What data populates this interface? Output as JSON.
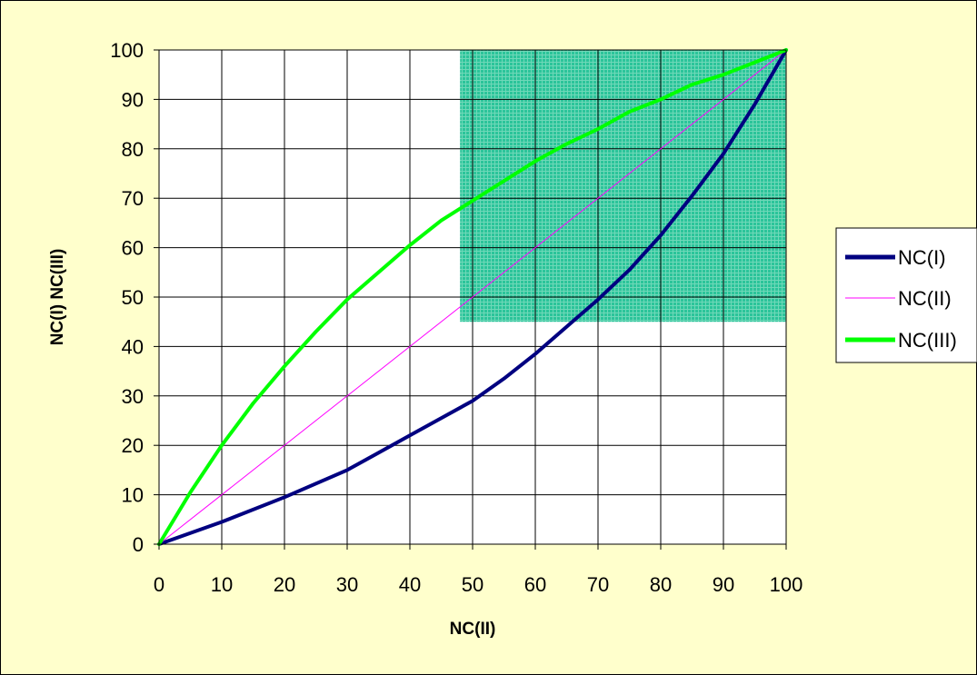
{
  "chart_data": {
    "type": "line",
    "title": "",
    "xlabel": "NC(II)",
    "ylabel": "NC(I)  NC(III)",
    "xlim": [
      0,
      100
    ],
    "ylim": [
      0,
      100
    ],
    "xticks": [
      "0",
      "10",
      "20",
      "30",
      "40",
      "50",
      "60",
      "70",
      "80",
      "90",
      "100"
    ],
    "yticks": [
      "0",
      "10",
      "20",
      "30",
      "40",
      "50",
      "60",
      "70",
      "80",
      "90",
      "100"
    ],
    "grid": true,
    "legend_position": "right",
    "highlight_region": {
      "x": [
        48,
        100
      ],
      "y": [
        45,
        100
      ],
      "color": "#2bc49a"
    },
    "series": [
      {
        "name": "NC(I)",
        "color": "#000080",
        "x": [
          0,
          10,
          20,
          30,
          35,
          40,
          45,
          50,
          55,
          60,
          65,
          70,
          75,
          80,
          85,
          90,
          95,
          100
        ],
        "y": [
          0,
          4.5,
          9.5,
          15,
          18.5,
          22,
          25.5,
          29,
          33.5,
          38.5,
          44,
          49.5,
          55.5,
          62.5,
          70.5,
          79,
          89,
          100
        ]
      },
      {
        "name": "NC(II)",
        "color": "#ff00ff",
        "x": [
          0,
          100
        ],
        "y": [
          0,
          100
        ]
      },
      {
        "name": "NC(III)",
        "color": "#00ff00",
        "x": [
          0,
          5,
          10,
          15,
          20,
          25,
          30,
          35,
          40,
          45,
          50,
          55,
          60,
          65,
          70,
          75,
          80,
          85,
          90,
          95,
          100
        ],
        "y": [
          0,
          10.5,
          20,
          28.5,
          36,
          43,
          49.5,
          55,
          60.5,
          65.5,
          69.5,
          73.5,
          77.5,
          81,
          84,
          87.5,
          90,
          93,
          95,
          97.5,
          100
        ]
      }
    ]
  }
}
